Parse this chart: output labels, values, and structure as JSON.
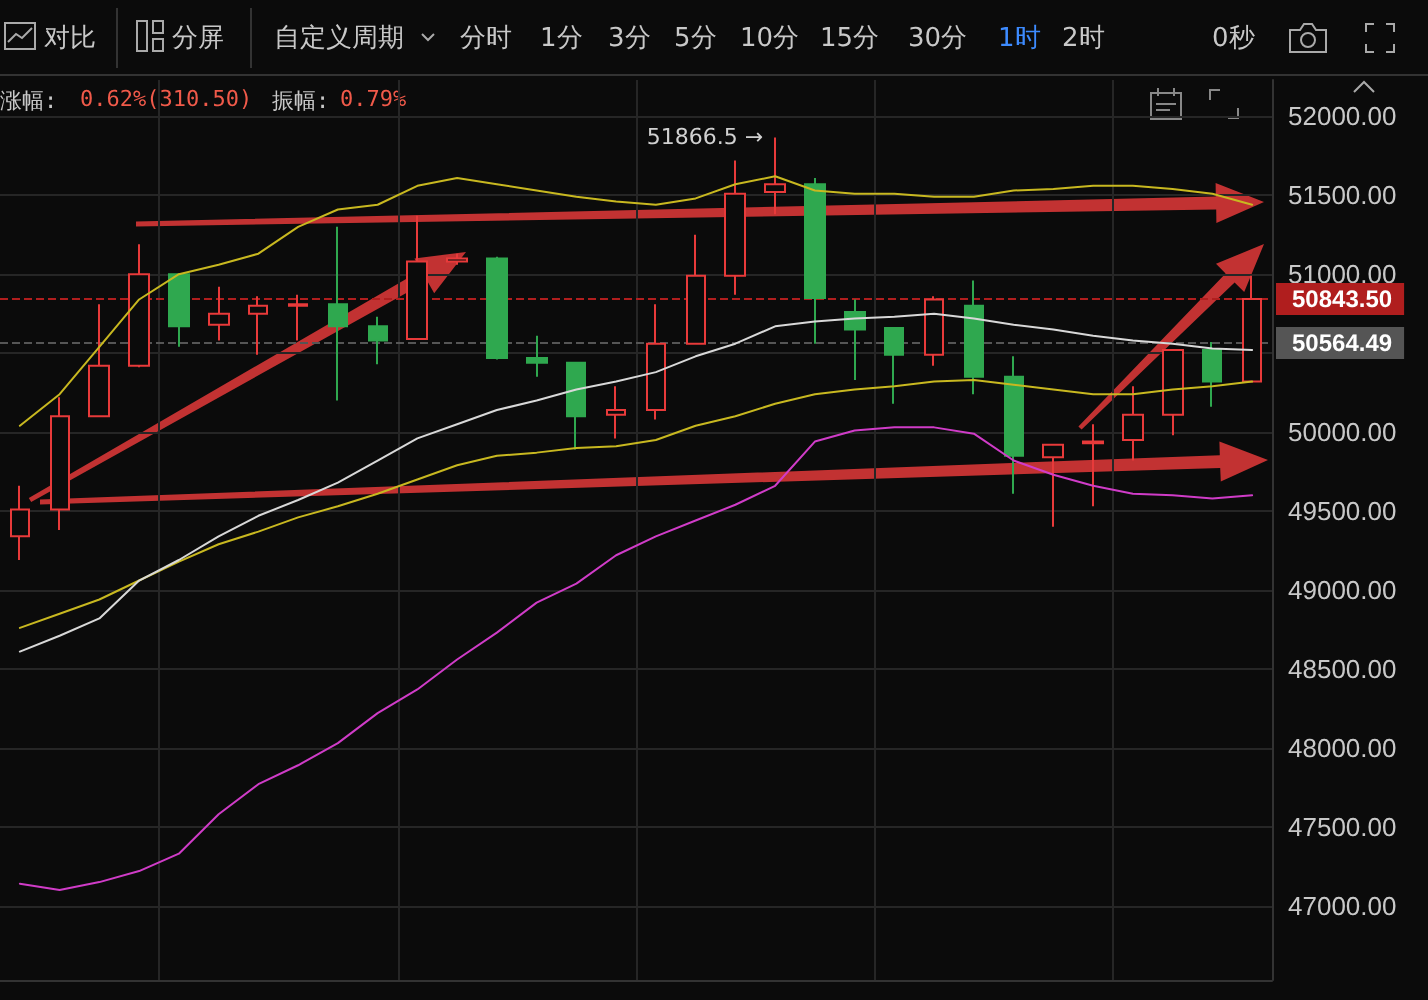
{
  "chart_data": {
    "type": "candlestick",
    "categories": [
      null,
      null,
      null,
      null,
      null,
      null,
      null,
      null,
      null,
      null,
      null,
      null,
      null,
      null,
      null,
      null,
      null,
      null,
      null,
      null,
      null,
      null,
      null,
      null,
      null,
      null,
      null,
      null,
      null,
      null,
      null,
      null
    ],
    "ohlc": [
      [
        49340,
        49660,
        49190,
        49510
      ],
      [
        49510,
        50220,
        49380,
        50100
      ],
      [
        50100,
        50810,
        50100,
        50420
      ],
      [
        50420,
        51190,
        50410,
        51000
      ],
      [
        51000,
        51000,
        50540,
        50670
      ],
      [
        50680,
        50920,
        50580,
        50750
      ],
      [
        50750,
        50860,
        50490,
        50800
      ],
      [
        50800,
        50870,
        50580,
        50810
      ],
      [
        50810,
        51300,
        50200,
        50670
      ],
      [
        50670,
        50730,
        50430,
        50580
      ],
      [
        50590,
        51370,
        50590,
        51080
      ],
      [
        51080,
        51130,
        51060,
        51100
      ],
      [
        51100,
        51110,
        50460,
        50470
      ],
      [
        50470,
        50610,
        50350,
        50440
      ],
      [
        50440,
        50440,
        49890,
        50100
      ],
      [
        50110,
        50290,
        49960,
        50140
      ],
      [
        50140,
        50810,
        50080,
        50560
      ],
      [
        50560,
        51250,
        50560,
        50990
      ],
      [
        50990,
        51720,
        50870,
        51510
      ],
      [
        51520,
        51866.5,
        51380,
        51570
      ],
      [
        51570,
        51610,
        50560,
        50850
      ],
      [
        50760,
        50840,
        50330,
        50650
      ],
      [
        50660,
        50660,
        50180,
        50490
      ],
      [
        50490,
        50860,
        50420,
        50840
      ],
      [
        50800,
        50960,
        50240,
        50350
      ],
      [
        50350,
        50480,
        49610,
        49850
      ],
      [
        49840,
        49920,
        49400,
        49920
      ],
      [
        49930,
        50050,
        49530,
        49940
      ],
      [
        49950,
        50290,
        49820,
        50110
      ],
      [
        50110,
        50520,
        49980,
        50520
      ],
      [
        50520,
        50570,
        50160,
        50320
      ],
      [
        50320,
        50990,
        50320,
        50843.5
      ]
    ],
    "colors": [
      "#e83a3a",
      "#e83a3a",
      "#e83a3a",
      "#e83a3a",
      "#2fa84f",
      "#e83a3a",
      "#e83a3a",
      "#e83a3a",
      "#2fa84f",
      "#2fa84f",
      "#e83a3a",
      "#e83a3a",
      "#2fa84f",
      "#2fa84f",
      "#2fa84f",
      "#e83a3a",
      "#e83a3a",
      "#e83a3a",
      "#e83a3a",
      "#e83a3a",
      "#2fa84f",
      "#2fa84f",
      "#2fa84f",
      "#e83a3a",
      "#2fa84f",
      "#2fa84f",
      "#e83a3a",
      "#e83a3a",
      "#e83a3a",
      "#e83a3a",
      "#2fa84f",
      "#e83a3a"
    ],
    "series": [
      {
        "type": "line",
        "color": "#c8b820",
        "values": [
          50040,
          50240,
          50540,
          50840,
          51000,
          51060,
          51130,
          51300,
          51410,
          51440,
          51560,
          51610,
          51570,
          51530,
          51490,
          51460,
          51440,
          51480,
          51570,
          51620,
          51530,
          51510,
          51510,
          51490,
          51490,
          51530,
          51540,
          51560,
          51560,
          51540,
          51510,
          51440
        ]
      },
      {
        "type": "line",
        "color": "#c8b820",
        "values": [
          48760,
          48850,
          48940,
          49060,
          49180,
          49290,
          49370,
          49460,
          49530,
          49610,
          49700,
          49790,
          49850,
          49870,
          49900,
          49910,
          49950,
          50040,
          50100,
          50180,
          50240,
          50270,
          50290,
          50320,
          50330,
          50300,
          50270,
          50240,
          50240,
          50270,
          50290,
          50320
        ]
      },
      {
        "type": "line",
        "color": "#d8d8d8",
        "values": [
          48610,
          48710,
          48820,
          49060,
          49190,
          49340,
          49470,
          49570,
          49680,
          49820,
          49960,
          50050,
          50140,
          50200,
          50270,
          50320,
          50380,
          50480,
          50560,
          50670,
          50700,
          50720,
          50730,
          50750,
          50720,
          50680,
          50650,
          50610,
          50580,
          50560,
          50530,
          50520
        ]
      },
      {
        "type": "line",
        "color": "#d03cc8",
        "values": [
          47140,
          47100,
          47150,
          47220,
          47330,
          47580,
          47770,
          47890,
          48030,
          48220,
          48370,
          48560,
          48730,
          48920,
          49040,
          49220,
          49340,
          49440,
          49540,
          49660,
          49940,
          50010,
          50030,
          50030,
          49990,
          49820,
          49730,
          49660,
          49610,
          49600,
          49580,
          49600
        ]
      }
    ],
    "ylim": [
      46530,
      52230
    ],
    "yticks": [
      {
        "value": 47000,
        "label": "47000.00"
      },
      {
        "value": 47500,
        "label": "47500.00"
      },
      {
        "value": 48000,
        "label": "48000.00"
      },
      {
        "value": 48500,
        "label": "48500.00"
      },
      {
        "value": 49000,
        "label": "49000.00"
      },
      {
        "value": 49500,
        "label": "49500.00"
      },
      {
        "value": 50000,
        "label": "50000.00"
      },
      {
        "value": 50500,
        "label": null
      },
      {
        "value": 51000,
        "label": "51000.00"
      },
      {
        "value": 51500,
        "label": "51500.00"
      },
      {
        "value": 52000,
        "label": "52000.00"
      }
    ],
    "ref_lines": [
      {
        "axis": "y",
        "value": 50843.5,
        "label": "50843.50",
        "color": "#b01e1e",
        "line_style": "dashed"
      },
      {
        "axis": "y",
        "value": 50564.49,
        "label": "50564.49",
        "color": "#555555",
        "line_style": "dashed"
      }
    ],
    "annotations": [
      "对比",
      "分屏",
      "自定义周期",
      "分时",
      "1分",
      "3分",
      "5分",
      "10分",
      "15分",
      "30分",
      "1时",
      "2时",
      "0秒",
      "涨幅:",
      "0.62%(310.50)",
      "振幅:",
      "0.79%",
      "51866.5 →"
    ],
    "tick_labels": "y",
    "grid": true,
    "marker": "none",
    "line_style": "solid"
  }
}
